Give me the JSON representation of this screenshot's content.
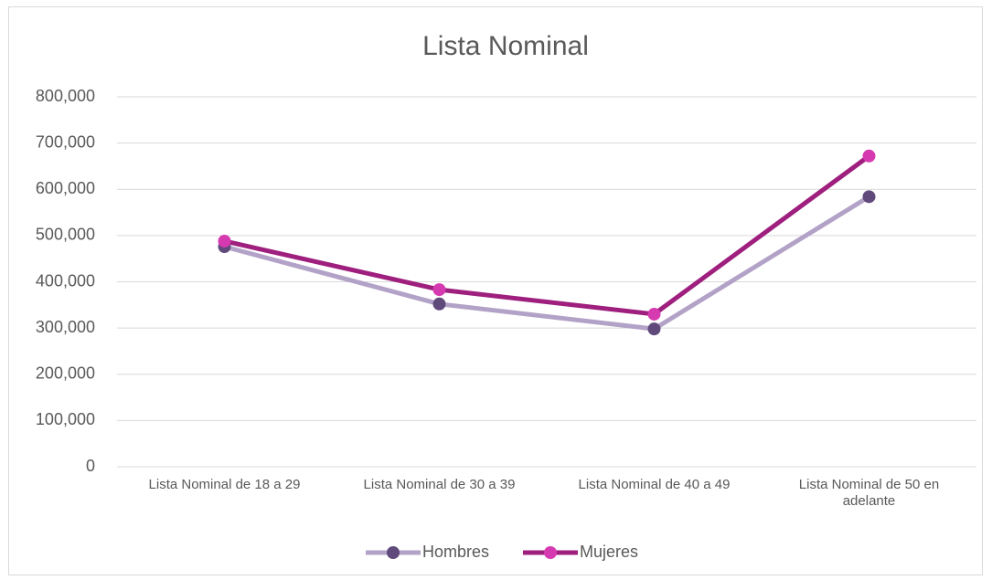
{
  "chart_data": {
    "type": "line",
    "title": "Lista Nominal",
    "categories": [
      "Lista Nominal de 18 a 29",
      "Lista Nominal de 30 a 39",
      "Lista Nominal de 40 a 49",
      "Lista Nominal de 50 en adelante"
    ],
    "series": [
      {
        "name": "Hombres",
        "color": "#b3a2c7",
        "marker_color": "#604a7b",
        "values": [
          476000,
          352000,
          298000,
          584000
        ]
      },
      {
        "name": "Mujeres",
        "color": "#9e1f7e",
        "marker_color": "#d63ab0",
        "values": [
          488000,
          383000,
          330000,
          672000
        ]
      }
    ],
    "ylim": [
      0,
      800000
    ],
    "yticks": [
      0,
      {
        "value": 100000,
        "label": "100,000"
      },
      {
        "value": 200000,
        "label": "200,000"
      },
      {
        "value": 300000,
        "label": "300,000"
      },
      {
        "value": 400000,
        "label": "400,000"
      },
      {
        "value": 500000,
        "label": "500,000"
      },
      {
        "value": 600000,
        "label": "600,000"
      },
      {
        "value": 700000,
        "label": "700,000"
      },
      {
        "value": 800000,
        "label": "800,000"
      }
    ],
    "grid": true,
    "legend": "bottom"
  }
}
